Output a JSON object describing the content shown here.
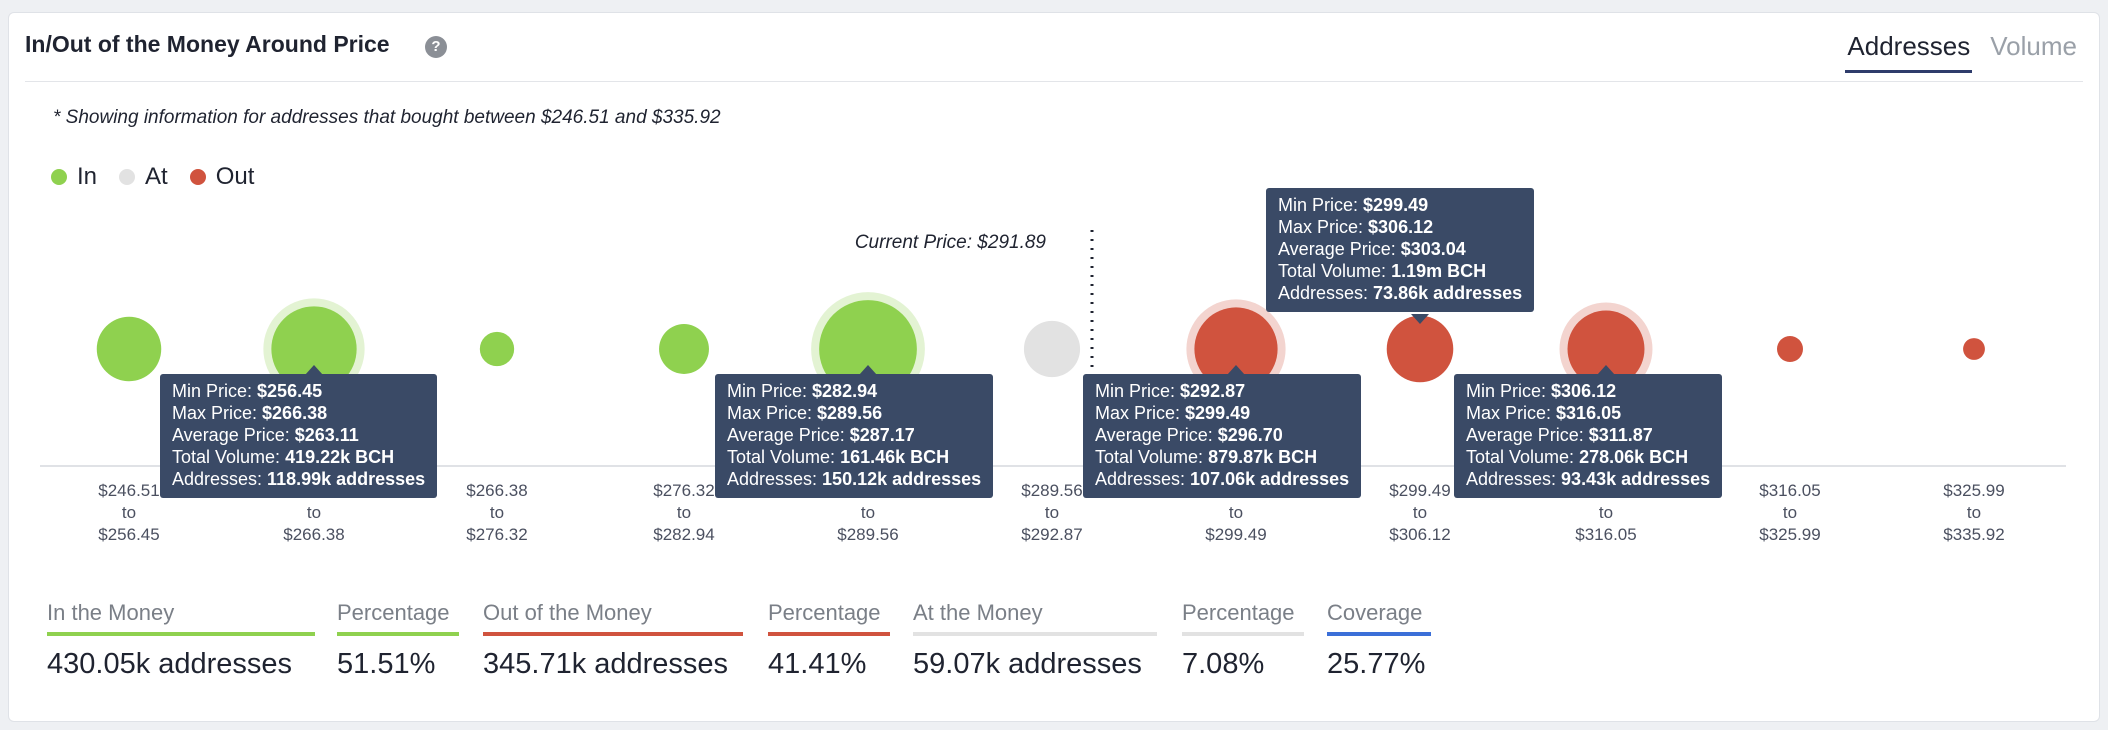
{
  "header": {
    "title": "In/Out of the Money Around Price",
    "help_icon": "?",
    "tabs": [
      {
        "label": "Addresses",
        "active": true
      },
      {
        "label": "Volume",
        "active": false
      }
    ]
  },
  "note": "* Showing information for addresses that bought between $246.51 and $335.92",
  "legend": [
    {
      "label": "In",
      "color": "#8fd14f"
    },
    {
      "label": "At",
      "color": "#e2e2e2"
    },
    {
      "label": "Out",
      "color": "#d0533e"
    }
  ],
  "current_price_label": "Current Price: $291.89",
  "chart_data": {
    "type": "bubble",
    "current_price": 291.89,
    "bins": [
      {
        "from": "$246.51",
        "to": "$256.45",
        "status": "In",
        "relative_size": 0.62
      },
      {
        "from": "$256.45",
        "to": "$266.38",
        "status": "In",
        "relative_size": 0.82
      },
      {
        "from": "$266.38",
        "to": "$276.32",
        "status": "In",
        "relative_size": 0.33
      },
      {
        "from": "$276.32",
        "to": "$282.94",
        "status": "In",
        "relative_size": 0.48
      },
      {
        "from": "$282.94",
        "to": "$289.56",
        "status": "In",
        "relative_size": 0.94
      },
      {
        "from": "$289.56",
        "to": "$292.87",
        "status": "At",
        "relative_size": 0.54
      },
      {
        "from": "$292.87",
        "to": "$299.49",
        "status": "Out",
        "relative_size": 0.8
      },
      {
        "from": "$299.49",
        "to": "$306.12",
        "status": "Out",
        "relative_size": 0.64
      },
      {
        "from": "$306.12",
        "to": "$316.05",
        "status": "Out",
        "relative_size": 0.74
      },
      {
        "from": "$316.05",
        "to": "$325.99",
        "status": "Out",
        "relative_size": 0.25
      },
      {
        "from": "$325.99",
        "to": "$335.92",
        "status": "Out",
        "relative_size": 0.21
      }
    ],
    "tooltips": [
      {
        "min": "$256.45",
        "max": "$266.38",
        "avg": "$263.11",
        "volume": "419.22k BCH",
        "addresses": "118.99k addresses"
      },
      {
        "min": "$282.94",
        "max": "$289.56",
        "avg": "$287.17",
        "volume": "161.46k BCH",
        "addresses": "150.12k addresses"
      },
      {
        "min": "$292.87",
        "max": "$299.49",
        "avg": "$296.70",
        "volume": "879.87k BCH",
        "addresses": "107.06k addresses"
      },
      {
        "min": "$299.49",
        "max": "$306.12",
        "avg": "$303.04",
        "volume": "1.19m BCH",
        "addresses": "73.86k addresses"
      },
      {
        "min": "$306.12",
        "max": "$316.05",
        "avg": "$311.87",
        "volume": "278.06k BCH",
        "addresses": "93.43k addresses"
      }
    ]
  },
  "tooltip_labels": {
    "min": "Min Price: ",
    "max": "Max Price: ",
    "avg": "Average Price: ",
    "volume": "Total Volume: ",
    "addresses": "Addresses: "
  },
  "tick_to": "to",
  "stats": [
    {
      "label": "In the Money",
      "value": "430.05k addresses",
      "color": "#8fd14f"
    },
    {
      "label": "Percentage",
      "value": "51.51%",
      "color": "#8fd14f"
    },
    {
      "label": "Out of the Money",
      "value": "345.71k addresses",
      "color": "#d0533e"
    },
    {
      "label": "Percentage",
      "value": "41.41%",
      "color": "#d0533e"
    },
    {
      "label": "At the Money",
      "value": "59.07k addresses",
      "color": "#e2e2e2"
    },
    {
      "label": "Percentage",
      "value": "7.08%",
      "color": "#e2e2e2"
    },
    {
      "label": "Coverage",
      "value": "25.77%",
      "color": "#3b6fd8"
    }
  ]
}
